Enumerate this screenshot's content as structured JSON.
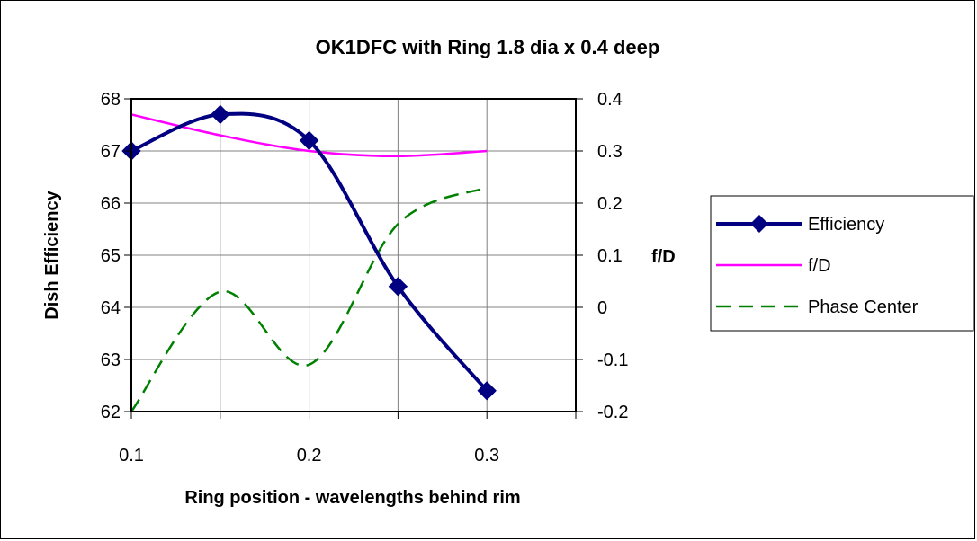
{
  "chart_data": {
    "type": "line",
    "title": "OK1DFC with Ring 1.8 dia x 0.4 deep",
    "xlabel": "Ring position - wavelengths behind rim",
    "ylabel": "Dish Efficiency",
    "y2label": "f/D",
    "xlim": [
      0.1,
      0.35
    ],
    "ylim": [
      62,
      68
    ],
    "y2lim": [
      -0.2,
      0.4
    ],
    "xticks": [
      "0.1",
      "0.2",
      "0.3"
    ],
    "yticks": [
      "62",
      "63",
      "64",
      "65",
      "66",
      "67",
      "68"
    ],
    "y2ticks": [
      "-0.2",
      "-0.1",
      "0",
      "0.1",
      "0.2",
      "0.3",
      "0.4"
    ],
    "grid": true,
    "legend_position": "right",
    "series": [
      {
        "name": "Efficiency",
        "axis": "left",
        "color": "#000080",
        "style": "solid-markers-diamond",
        "x": [
          0.1,
          0.15,
          0.2,
          0.25,
          0.3
        ],
        "values": [
          67.0,
          67.7,
          67.2,
          64.4,
          62.4
        ]
      },
      {
        "name": "f/D",
        "axis": "right",
        "color": "#ff00ff",
        "style": "solid",
        "x": [
          0.1,
          0.15,
          0.2,
          0.25,
          0.3
        ],
        "values": [
          0.37,
          0.33,
          0.3,
          0.29,
          0.3
        ]
      },
      {
        "name": "Phase Center",
        "axis": "right",
        "color": "#008000",
        "style": "dashed",
        "x": [
          0.1,
          0.15,
          0.2,
          0.25,
          0.3
        ],
        "values": [
          -0.2,
          0.03,
          -0.11,
          0.16,
          0.23
        ]
      }
    ]
  }
}
